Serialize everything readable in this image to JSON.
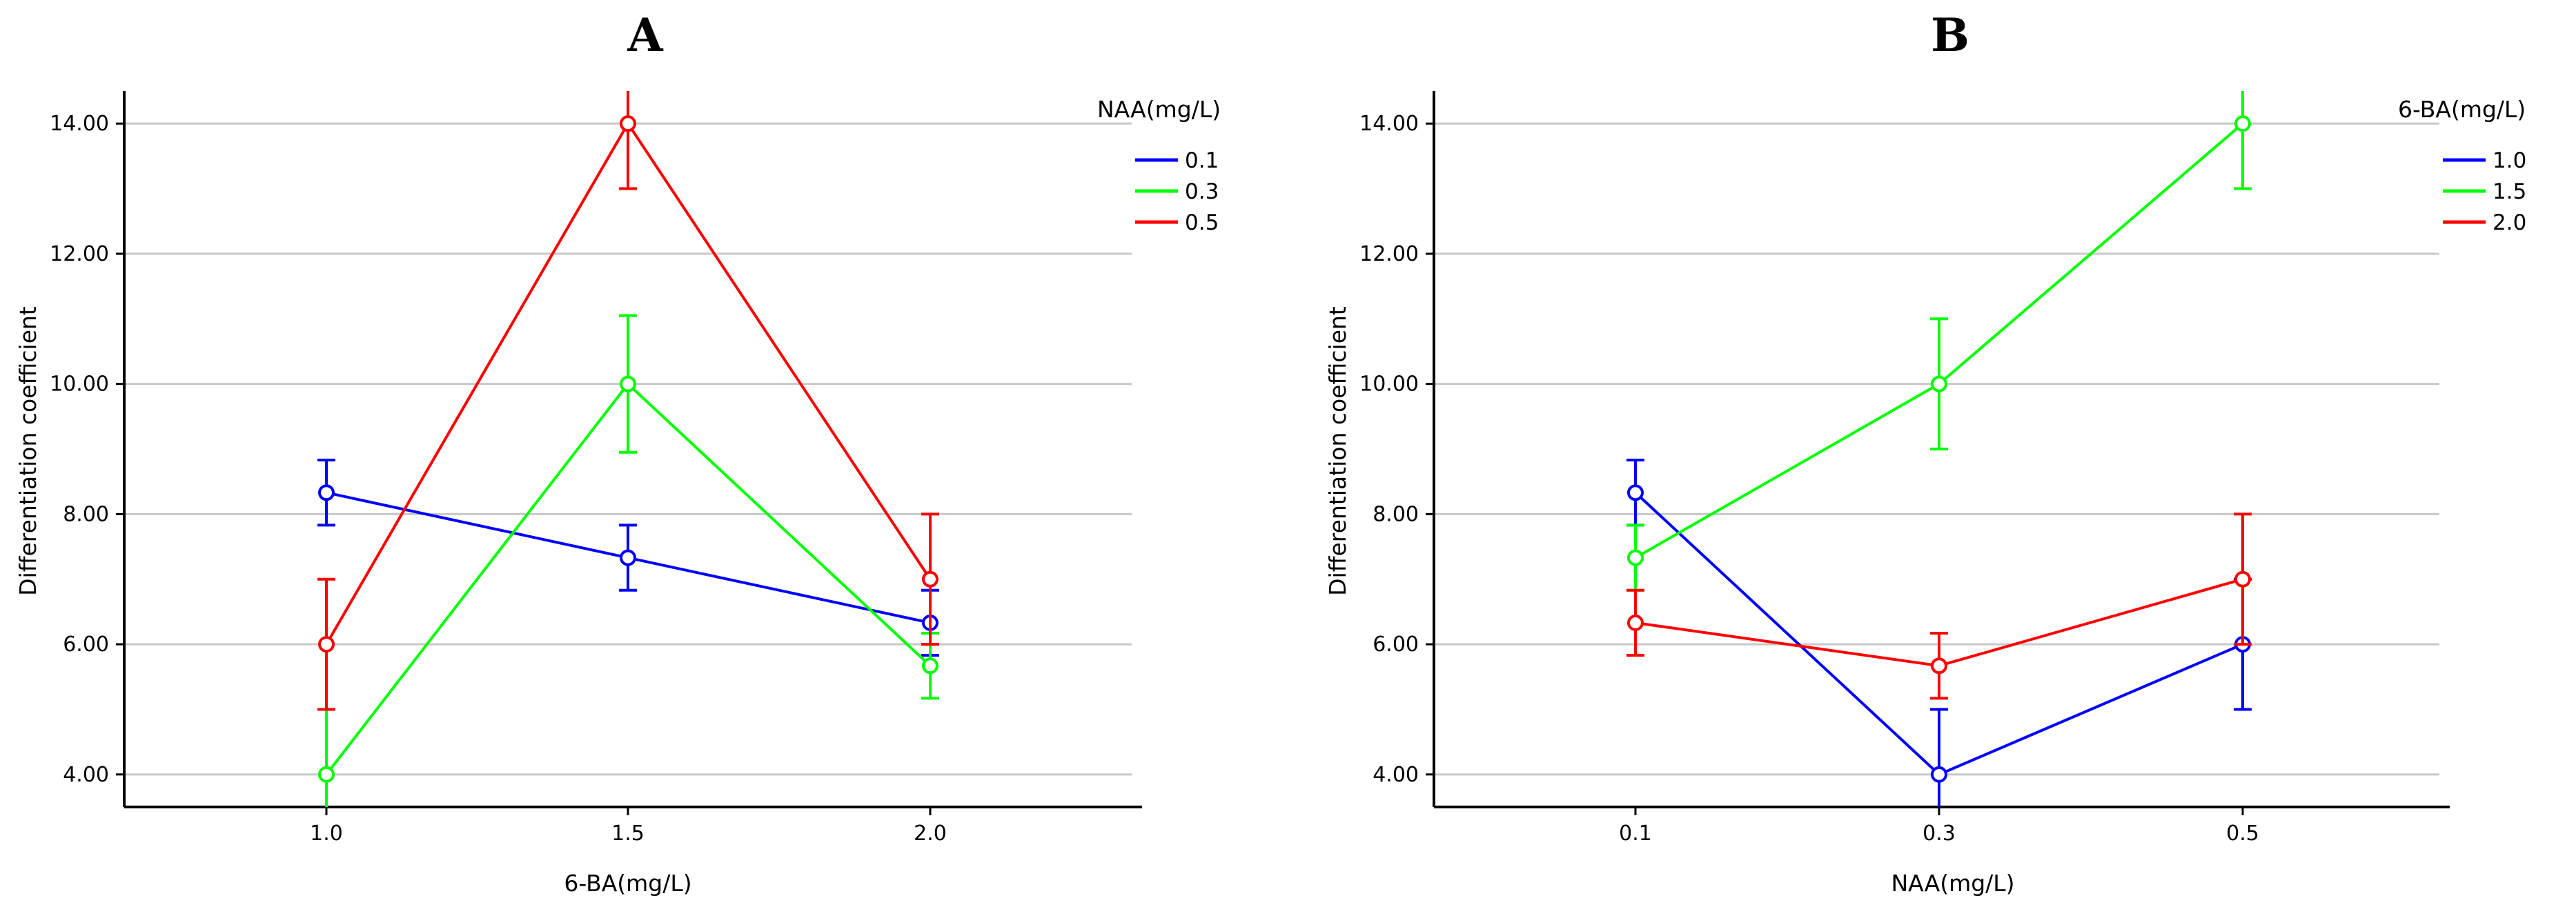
{
  "chart_data": [
    {
      "type": "line",
      "title": "A",
      "xlabel": "6-BA(mg/L)",
      "ylabel": "Differentiation coefficient",
      "categories": [
        "1.0",
        "1.5",
        "2.0"
      ],
      "ylim": [
        3.5,
        14.5
      ],
      "yticks": [
        "4.00",
        "6.00",
        "8.00",
        "10.00",
        "12.00",
        "14.00"
      ],
      "grid": true,
      "legend_title": "NAA(mg/L)",
      "legend_position": "top-right",
      "series": [
        {
          "name": "0.1",
          "color": "#0000ff",
          "values": [
            8.33,
            7.33,
            6.33
          ],
          "errors": [
            0.5,
            0.5,
            0.5
          ]
        },
        {
          "name": "0.3",
          "color": "#00ff00",
          "values": [
            4.0,
            10.0,
            5.67
          ],
          "errors": [
            1.0,
            1.05,
            0.5
          ]
        },
        {
          "name": "0.5",
          "color": "#ff0000",
          "values": [
            6.0,
            14.0,
            7.0
          ],
          "errors": [
            1.0,
            1.0,
            1.0
          ]
        }
      ]
    },
    {
      "type": "line",
      "title": "B",
      "xlabel": "NAA(mg/L)",
      "ylabel": "Differentiation coefficient",
      "categories": [
        "0.1",
        "0.3",
        "0.5"
      ],
      "ylim": [
        3.5,
        14.5
      ],
      "yticks": [
        "4.00",
        "6.00",
        "8.00",
        "10.00",
        "12.00",
        "14.00"
      ],
      "grid": true,
      "legend_title": "6-BA(mg/L)",
      "legend_position": "top-right",
      "series": [
        {
          "name": "1.0",
          "color": "#0000ff",
          "values": [
            8.33,
            4.0,
            6.0
          ],
          "errors": [
            0.5,
            1.0,
            1.0
          ]
        },
        {
          "name": "1.5",
          "color": "#00ff00",
          "values": [
            7.33,
            10.0,
            14.0
          ],
          "errors": [
            0.5,
            1.0,
            1.0
          ]
        },
        {
          "name": "2.0",
          "color": "#ff0000",
          "values": [
            6.33,
            5.67,
            7.0
          ],
          "errors": [
            0.5,
            0.5,
            1.0
          ]
        }
      ]
    }
  ],
  "colors": {
    "grid": "#c8c8c8",
    "axis": "#000000"
  }
}
